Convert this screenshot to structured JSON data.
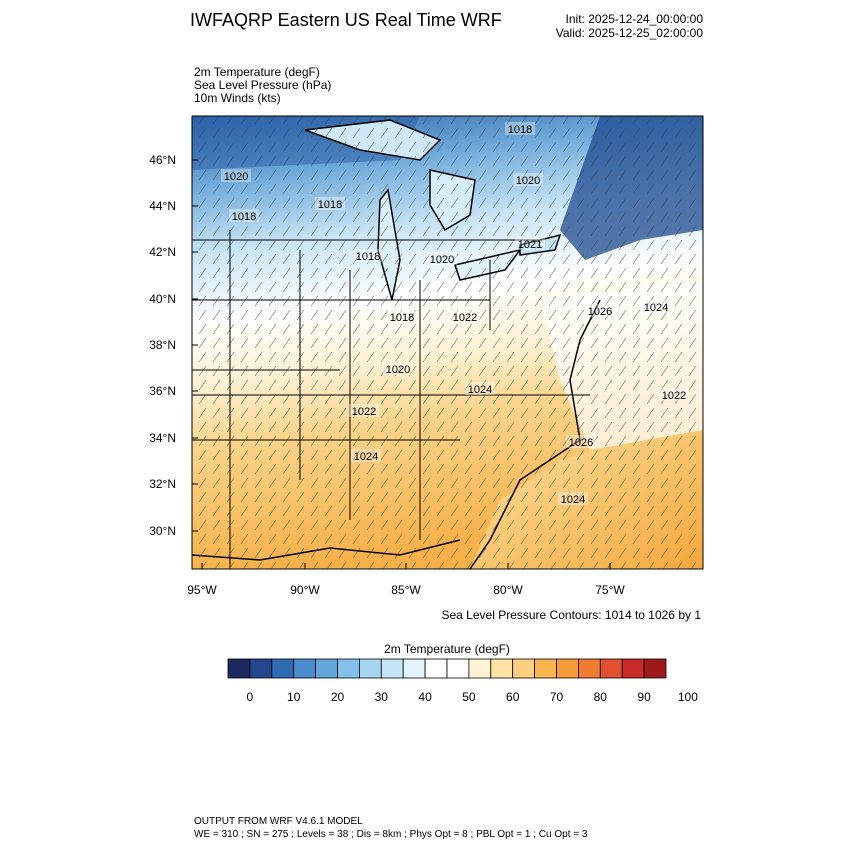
{
  "header": {
    "title": "IWFAQRP Eastern US Real Time WRF",
    "init": "Init: 2025-12-24_00:00:00",
    "valid": "Valid: 2025-12-25_02:00:00"
  },
  "fields": [
    "2m Temperature   (degF)",
    "Sea Level Pressure   (hPa)",
    "10m Winds   (kts)"
  ],
  "map": {
    "lat_labels": [
      "46°N",
      "44°N",
      "42°N",
      "40°N",
      "38°N",
      "36°N",
      "34°N",
      "32°N",
      "30°N"
    ],
    "lon_labels": [
      "95°W",
      "90°W",
      "85°W",
      "80°W",
      "75°W"
    ],
    "contour_labels": [
      "1018",
      "1020",
      "1020",
      "1018",
      "1018",
      "1021",
      "1018",
      "1020",
      "1018",
      "1022",
      "1026",
      "1024",
      "1020",
      "1024",
      "1022",
      "1022",
      "1026",
      "1024",
      "1024"
    ]
  },
  "contour_note": "Sea Level Pressure Contours: 1014 to 1026 by 1",
  "colorbar": {
    "title": "2m Temperature  (degF)",
    "colors": [
      "#1b2a5e",
      "#23468f",
      "#2f6bb3",
      "#4a8ccc",
      "#62a6db",
      "#84c0e9",
      "#a6d5f2",
      "#c4e5f7",
      "#e2f3fb",
      "#ffffff",
      "#ffffff",
      "#fff3d3",
      "#fde4a5",
      "#fbcf7e",
      "#f9b54f",
      "#f59b3a",
      "#ef7b31",
      "#e0522d",
      "#c82a2a",
      "#9e1a1a"
    ],
    "labels": [
      "0",
      "10",
      "20",
      "30",
      "40",
      "50",
      "60",
      "70",
      "80",
      "90",
      "100"
    ]
  },
  "footer": {
    "line1": "OUTPUT FROM WRF V4.6.1 MODEL",
    "line2": "WE = 310 ; SN = 275 ; Levels = 38 ; Dis = 8km ; Phys Opt = 8 ; PBL Opt = 1 ; Cu Opt = 3"
  }
}
